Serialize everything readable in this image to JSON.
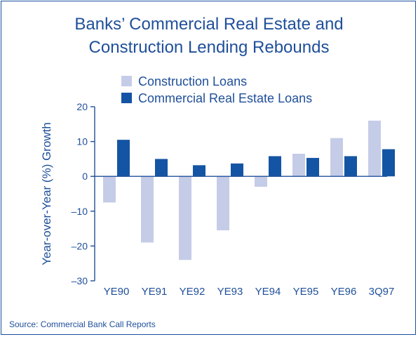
{
  "chart_data": {
    "type": "bar",
    "title_lines": [
      "Banks’ Commercial Real Estate and",
      "Construction Lending Rebounds"
    ],
    "xlabel": "",
    "ylabel": "Year-over-Year (%) Growth",
    "categories": [
      "YE90",
      "YE91",
      "YE92",
      "YE93",
      "YE94",
      "YE95",
      "YE96",
      "3Q97"
    ],
    "ylim": [
      -30,
      20
    ],
    "yticks": [
      20,
      10,
      0,
      -10,
      -20,
      -30
    ],
    "ytick_labels": [
      "20",
      "10",
      "0",
      "–10",
      "–20",
      "–30"
    ],
    "grid": false,
    "legend_position": "top",
    "series": [
      {
        "name": "Construction Loans",
        "color": "#c5cce8",
        "values": [
          -7.5,
          -19,
          -24,
          -15.5,
          -3,
          6.5,
          11,
          16
        ]
      },
      {
        "name": "Commercial Real Estate Loans",
        "color": "#1454a4",
        "values": [
          10.5,
          5,
          3.2,
          3.7,
          5.8,
          5.3,
          5.8,
          7.8
        ]
      }
    ]
  },
  "source_note": "Source: Commercial Bank Call Reports"
}
